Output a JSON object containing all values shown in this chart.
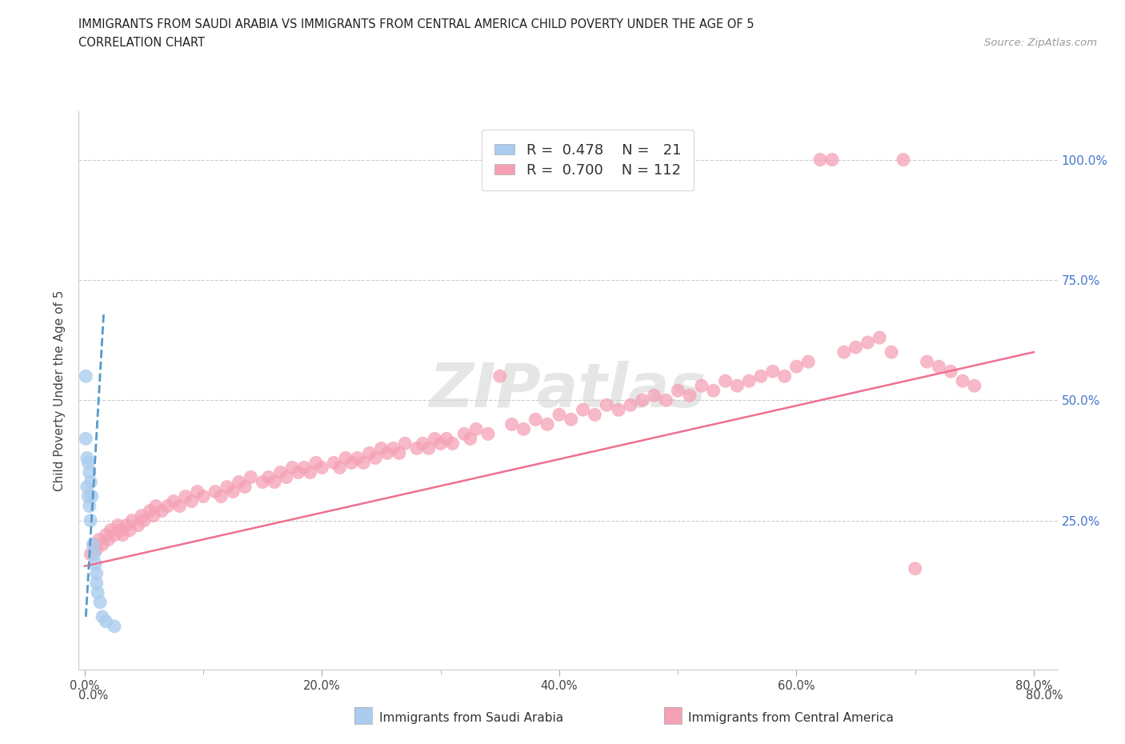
{
  "title_line1": "IMMIGRANTS FROM SAUDI ARABIA VS IMMIGRANTS FROM CENTRAL AMERICA CHILD POVERTY UNDER THE AGE OF 5",
  "title_line2": "CORRELATION CHART",
  "source_text": "Source: ZipAtlas.com",
  "ylabel": "Child Poverty Under the Age of 5",
  "watermark": "ZIPatlas",
  "R_saudi": 0.478,
  "N_saudi": 21,
  "R_central": 0.7,
  "N_central": 112,
  "color_saudi": "#aaccee",
  "color_central": "#f5a0b5",
  "trendline_saudi_color": "#5599cc",
  "trendline_central_color": "#ee7090",
  "saudi_x": [
    0.001,
    0.001,
    0.002,
    0.002,
    0.003,
    0.003,
    0.004,
    0.004,
    0.005,
    0.005,
    0.006,
    0.007,
    0.008,
    0.009,
    0.01,
    0.01,
    0.011,
    0.013,
    0.015,
    0.018,
    0.025
  ],
  "saudi_y": [
    0.55,
    0.42,
    0.38,
    0.32,
    0.37,
    0.3,
    0.35,
    0.28,
    0.33,
    0.25,
    0.3,
    0.2,
    0.18,
    0.16,
    0.14,
    0.12,
    0.1,
    0.08,
    0.05,
    0.04,
    0.03
  ],
  "central_x": [
    0.005,
    0.008,
    0.01,
    0.012,
    0.015,
    0.018,
    0.02,
    0.022,
    0.025,
    0.028,
    0.03,
    0.032,
    0.035,
    0.038,
    0.04,
    0.045,
    0.048,
    0.05,
    0.055,
    0.058,
    0.06,
    0.065,
    0.07,
    0.075,
    0.08,
    0.085,
    0.09,
    0.095,
    0.1,
    0.11,
    0.115,
    0.12,
    0.125,
    0.13,
    0.135,
    0.14,
    0.15,
    0.155,
    0.16,
    0.165,
    0.17,
    0.175,
    0.18,
    0.185,
    0.19,
    0.195,
    0.2,
    0.21,
    0.215,
    0.22,
    0.225,
    0.23,
    0.235,
    0.24,
    0.245,
    0.25,
    0.255,
    0.26,
    0.265,
    0.27,
    0.28,
    0.285,
    0.29,
    0.295,
    0.3,
    0.305,
    0.31,
    0.32,
    0.325,
    0.33,
    0.34,
    0.35,
    0.36,
    0.37,
    0.38,
    0.39,
    0.4,
    0.41,
    0.42,
    0.43,
    0.44,
    0.45,
    0.46,
    0.47,
    0.48,
    0.49,
    0.5,
    0.51,
    0.52,
    0.53,
    0.54,
    0.55,
    0.56,
    0.57,
    0.58,
    0.59,
    0.6,
    0.61,
    0.62,
    0.63,
    0.64,
    0.65,
    0.66,
    0.67,
    0.68,
    0.69,
    0.7,
    0.71,
    0.72,
    0.73,
    0.74,
    0.75
  ],
  "central_y": [
    0.18,
    0.2,
    0.19,
    0.21,
    0.2,
    0.22,
    0.21,
    0.23,
    0.22,
    0.24,
    0.23,
    0.22,
    0.24,
    0.23,
    0.25,
    0.24,
    0.26,
    0.25,
    0.27,
    0.26,
    0.28,
    0.27,
    0.28,
    0.29,
    0.28,
    0.3,
    0.29,
    0.31,
    0.3,
    0.31,
    0.3,
    0.32,
    0.31,
    0.33,
    0.32,
    0.34,
    0.33,
    0.34,
    0.33,
    0.35,
    0.34,
    0.36,
    0.35,
    0.36,
    0.35,
    0.37,
    0.36,
    0.37,
    0.36,
    0.38,
    0.37,
    0.38,
    0.37,
    0.39,
    0.38,
    0.4,
    0.39,
    0.4,
    0.39,
    0.41,
    0.4,
    0.41,
    0.4,
    0.42,
    0.41,
    0.42,
    0.41,
    0.43,
    0.42,
    0.44,
    0.43,
    0.55,
    0.45,
    0.44,
    0.46,
    0.45,
    0.47,
    0.46,
    0.48,
    0.47,
    0.49,
    0.48,
    0.49,
    0.5,
    0.51,
    0.5,
    0.52,
    0.51,
    0.53,
    0.52,
    0.54,
    0.53,
    0.54,
    0.55,
    0.56,
    0.55,
    0.57,
    0.58,
    1.0,
    1.0,
    0.6,
    0.61,
    0.62,
    0.63,
    0.6,
    1.0,
    0.15,
    0.58,
    0.57,
    0.56,
    0.54,
    0.53
  ],
  "trendline_central_x0": 0.0,
  "trendline_central_y0": 0.155,
  "trendline_central_x1": 0.8,
  "trendline_central_y1": 0.6,
  "trendline_saudi_x0": 0.001,
  "trendline_saudi_y0": 0.05,
  "trendline_saudi_x1": 0.016,
  "trendline_saudi_y1": 0.68,
  "xlim": [
    -0.005,
    0.82
  ],
  "ylim": [
    -0.06,
    1.1
  ],
  "xticks": [
    0.0,
    0.2,
    0.4,
    0.6,
    0.8
  ],
  "xtick_labels": [
    "0.0%",
    "20.0%",
    "40.0%",
    "60.0%",
    "80.0%"
  ],
  "yticks": [
    0.25,
    0.5,
    0.75,
    1.0
  ],
  "ytick_labels": [
    "25.0%",
    "50.0%",
    "75.0%",
    "100.0%"
  ]
}
